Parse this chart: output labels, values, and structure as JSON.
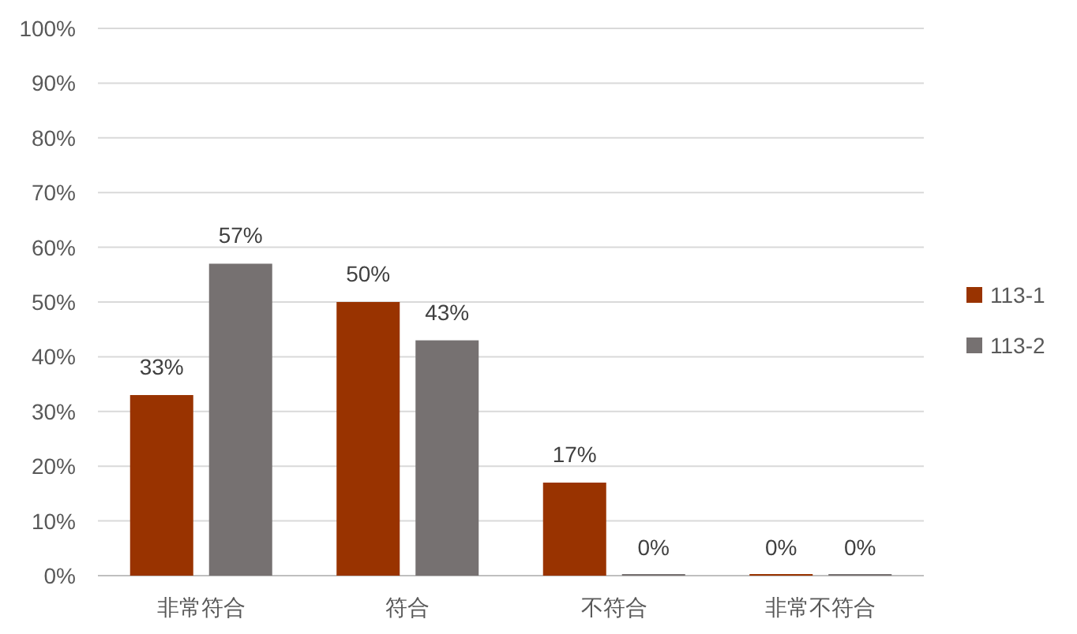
{
  "chart_data": {
    "type": "bar",
    "categories": [
      "非常符合",
      "符合",
      "不符合",
      "非常不符合"
    ],
    "series": [
      {
        "name": "113-1",
        "color": "#993300",
        "values": [
          33,
          50,
          17,
          0
        ],
        "value_labels": [
          "33%",
          "50%",
          "17%",
          "0%"
        ]
      },
      {
        "name": "113-2",
        "color": "#767171",
        "values": [
          57,
          43,
          0,
          0
        ],
        "value_labels": [
          "57%",
          "43%",
          "0%",
          "0%"
        ]
      }
    ],
    "ylim": [
      0,
      100
    ],
    "yticks": [
      {
        "value": 0,
        "label": "0%"
      },
      {
        "value": 10,
        "label": "10%"
      },
      {
        "value": 20,
        "label": "20%"
      },
      {
        "value": 30,
        "label": "30%"
      },
      {
        "value": 40,
        "label": "40%"
      },
      {
        "value": 50,
        "label": "50%"
      },
      {
        "value": 60,
        "label": "60%"
      },
      {
        "value": 70,
        "label": "70%"
      },
      {
        "value": 80,
        "label": "80%"
      },
      {
        "value": 90,
        "label": "90%"
      },
      {
        "value": 100,
        "label": "100%"
      }
    ],
    "grid": "y",
    "legend": "right"
  }
}
